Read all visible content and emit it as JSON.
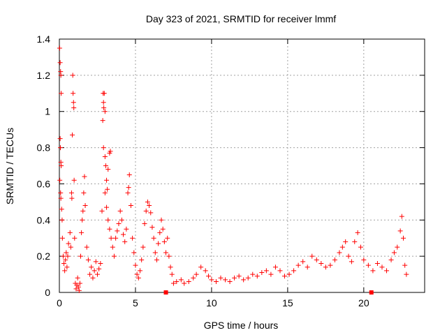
{
  "chart_data": {
    "type": "scatter",
    "title": "Day 323 of 2021, SRMTID for receiver lmmf",
    "xlabel": "GPS time / hours",
    "ylabel": "SRMTID / TECUs",
    "xlim": [
      0,
      24
    ],
    "ylim": [
      0,
      1.4
    ],
    "x_ticks": [
      0,
      5,
      10,
      15,
      20
    ],
    "x_tick_labels": [
      "0",
      "5",
      "10",
      "15",
      "20"
    ],
    "y_ticks": [
      0,
      0.2,
      0.4,
      0.6,
      0.8,
      1,
      1.2,
      1.4
    ],
    "y_tick_labels": [
      "0",
      "0.2",
      "0.4",
      "0.6",
      "0.8",
      "1",
      "1.2",
      "1.4"
    ],
    "grid": true,
    "marker": "+",
    "color": "#ff0000",
    "gap_markers_x": [
      7.0,
      20.5
    ],
    "series": [
      {
        "name": "SRMTID",
        "points": [
          [
            0.02,
            1.35
          ],
          [
            0.05,
            1.27
          ],
          [
            0.08,
            1.22
          ],
          [
            0.1,
            1.2
          ],
          [
            0.12,
            1.1
          ],
          [
            0.05,
            0.85
          ],
          [
            0.07,
            0.8
          ],
          [
            0.1,
            0.72
          ],
          [
            0.12,
            0.7
          ],
          [
            0.03,
            0.62
          ],
          [
            0.08,
            0.55
          ],
          [
            0.1,
            0.52
          ],
          [
            0.15,
            0.46
          ],
          [
            0.18,
            0.4
          ],
          [
            0.2,
            0.3
          ],
          [
            0.25,
            0.2
          ],
          [
            0.3,
            0.16
          ],
          [
            0.35,
            0.12
          ],
          [
            0.4,
            0.18
          ],
          [
            0.45,
            0.22
          ],
          [
            0.5,
            0.14
          ],
          [
            0.55,
            0.2
          ],
          [
            0.6,
            0.27
          ],
          [
            0.7,
            0.33
          ],
          [
            0.75,
            0.25
          ],
          [
            0.8,
            0.55
          ],
          [
            0.82,
            0.52
          ],
          [
            0.85,
            0.87
          ],
          [
            0.88,
            1.2
          ],
          [
            0.9,
            1.1
          ],
          [
            0.93,
            1.05
          ],
          [
            0.95,
            1.02
          ],
          [
            0.97,
            0.62
          ],
          [
            1.0,
            0.3
          ],
          [
            1.05,
            0.05
          ],
          [
            1.1,
            0.02
          ],
          [
            1.15,
            0.04
          ],
          [
            1.2,
            0.08
          ],
          [
            1.25,
            0.03
          ],
          [
            1.3,
            0.01
          ],
          [
            1.35,
            0.05
          ],
          [
            1.4,
            0.2
          ],
          [
            1.45,
            0.33
          ],
          [
            1.5,
            0.4
          ],
          [
            1.55,
            0.45
          ],
          [
            1.6,
            0.55
          ],
          [
            1.65,
            0.64
          ],
          [
            1.7,
            0.48
          ],
          [
            1.8,
            0.25
          ],
          [
            1.9,
            0.18
          ],
          [
            2.0,
            0.1
          ],
          [
            2.1,
            0.14
          ],
          [
            2.2,
            0.08
          ],
          [
            2.3,
            0.12
          ],
          [
            2.4,
            0.17
          ],
          [
            2.5,
            0.1
          ],
          [
            2.6,
            0.13
          ],
          [
            2.7,
            0.16
          ],
          [
            2.8,
            0.45
          ],
          [
            2.85,
            0.95
          ],
          [
            2.88,
            1.1
          ],
          [
            2.9,
            1.05
          ],
          [
            2.92,
            1.02
          ],
          [
            2.95,
            1.1
          ],
          [
            3.0,
            1.0
          ],
          [
            2.9,
            0.8
          ],
          [
            3.0,
            0.75
          ],
          [
            3.05,
            0.7
          ],
          [
            3.1,
            0.62
          ],
          [
            3.15,
            0.57
          ],
          [
            3.2,
            0.68
          ],
          [
            3.3,
            0.77
          ],
          [
            3.35,
            0.78
          ],
          [
            3.0,
            0.55
          ],
          [
            3.1,
            0.47
          ],
          [
            3.2,
            0.4
          ],
          [
            3.3,
            0.35
          ],
          [
            3.4,
            0.3
          ],
          [
            3.5,
            0.25
          ],
          [
            3.6,
            0.2
          ],
          [
            3.7,
            0.3
          ],
          [
            3.8,
            0.34
          ],
          [
            3.9,
            0.38
          ],
          [
            4.0,
            0.45
          ],
          [
            4.1,
            0.4
          ],
          [
            4.2,
            0.32
          ],
          [
            4.3,
            0.28
          ],
          [
            4.4,
            0.35
          ],
          [
            4.5,
            0.55
          ],
          [
            4.55,
            0.58
          ],
          [
            4.6,
            0.65
          ],
          [
            4.7,
            0.48
          ],
          [
            4.8,
            0.3
          ],
          [
            4.9,
            0.22
          ],
          [
            5.0,
            0.15
          ],
          [
            5.1,
            0.1
          ],
          [
            5.2,
            0.08
          ],
          [
            5.3,
            0.12
          ],
          [
            5.4,
            0.18
          ],
          [
            5.5,
            0.25
          ],
          [
            5.6,
            0.38
          ],
          [
            5.7,
            0.45
          ],
          [
            5.8,
            0.5
          ],
          [
            5.9,
            0.48
          ],
          [
            6.0,
            0.44
          ],
          [
            6.1,
            0.36
          ],
          [
            6.2,
            0.3
          ],
          [
            6.3,
            0.22
          ],
          [
            6.4,
            0.18
          ],
          [
            6.5,
            0.27
          ],
          [
            6.6,
            0.33
          ],
          [
            6.7,
            0.4
          ],
          [
            6.8,
            0.35
          ],
          [
            6.9,
            0.28
          ],
          [
            7.0,
            0.22
          ],
          [
            7.1,
            0.3
          ],
          [
            7.2,
            0.2
          ],
          [
            7.3,
            0.14
          ],
          [
            7.4,
            0.1
          ],
          [
            7.5,
            0.05
          ],
          [
            7.7,
            0.06
          ],
          [
            8.0,
            0.07
          ],
          [
            8.2,
            0.05
          ],
          [
            8.5,
            0.06
          ],
          [
            8.8,
            0.08
          ],
          [
            9.0,
            0.1
          ],
          [
            9.3,
            0.14
          ],
          [
            9.6,
            0.12
          ],
          [
            9.8,
            0.09
          ],
          [
            10.0,
            0.07
          ],
          [
            10.3,
            0.06
          ],
          [
            10.6,
            0.08
          ],
          [
            10.9,
            0.07
          ],
          [
            11.2,
            0.06
          ],
          [
            11.5,
            0.08
          ],
          [
            11.8,
            0.09
          ],
          [
            12.1,
            0.07
          ],
          [
            12.4,
            0.08
          ],
          [
            12.7,
            0.1
          ],
          [
            13.0,
            0.09
          ],
          [
            13.3,
            0.11
          ],
          [
            13.6,
            0.12
          ],
          [
            13.9,
            0.1
          ],
          [
            14.2,
            0.14
          ],
          [
            14.5,
            0.12
          ],
          [
            14.8,
            0.09
          ],
          [
            15.1,
            0.1
          ],
          [
            15.4,
            0.12
          ],
          [
            15.7,
            0.15
          ],
          [
            16.0,
            0.17
          ],
          [
            16.3,
            0.14
          ],
          [
            16.6,
            0.2
          ],
          [
            16.9,
            0.18
          ],
          [
            17.2,
            0.16
          ],
          [
            17.5,
            0.14
          ],
          [
            17.8,
            0.15
          ],
          [
            18.1,
            0.18
          ],
          [
            18.4,
            0.22
          ],
          [
            18.6,
            0.25
          ],
          [
            18.8,
            0.28
          ],
          [
            19.0,
            0.2
          ],
          [
            19.2,
            0.17
          ],
          [
            19.4,
            0.28
          ],
          [
            19.6,
            0.33
          ],
          [
            19.8,
            0.25
          ],
          [
            20.0,
            0.18
          ],
          [
            20.3,
            0.15
          ],
          [
            20.6,
            0.12
          ],
          [
            20.9,
            0.16
          ],
          [
            21.2,
            0.14
          ],
          [
            21.5,
            0.12
          ],
          [
            21.8,
            0.18
          ],
          [
            22.0,
            0.22
          ],
          [
            22.2,
            0.25
          ],
          [
            22.4,
            0.34
          ],
          [
            22.5,
            0.42
          ],
          [
            22.6,
            0.3
          ],
          [
            22.7,
            0.15
          ],
          [
            22.8,
            0.1
          ]
        ]
      }
    ]
  }
}
